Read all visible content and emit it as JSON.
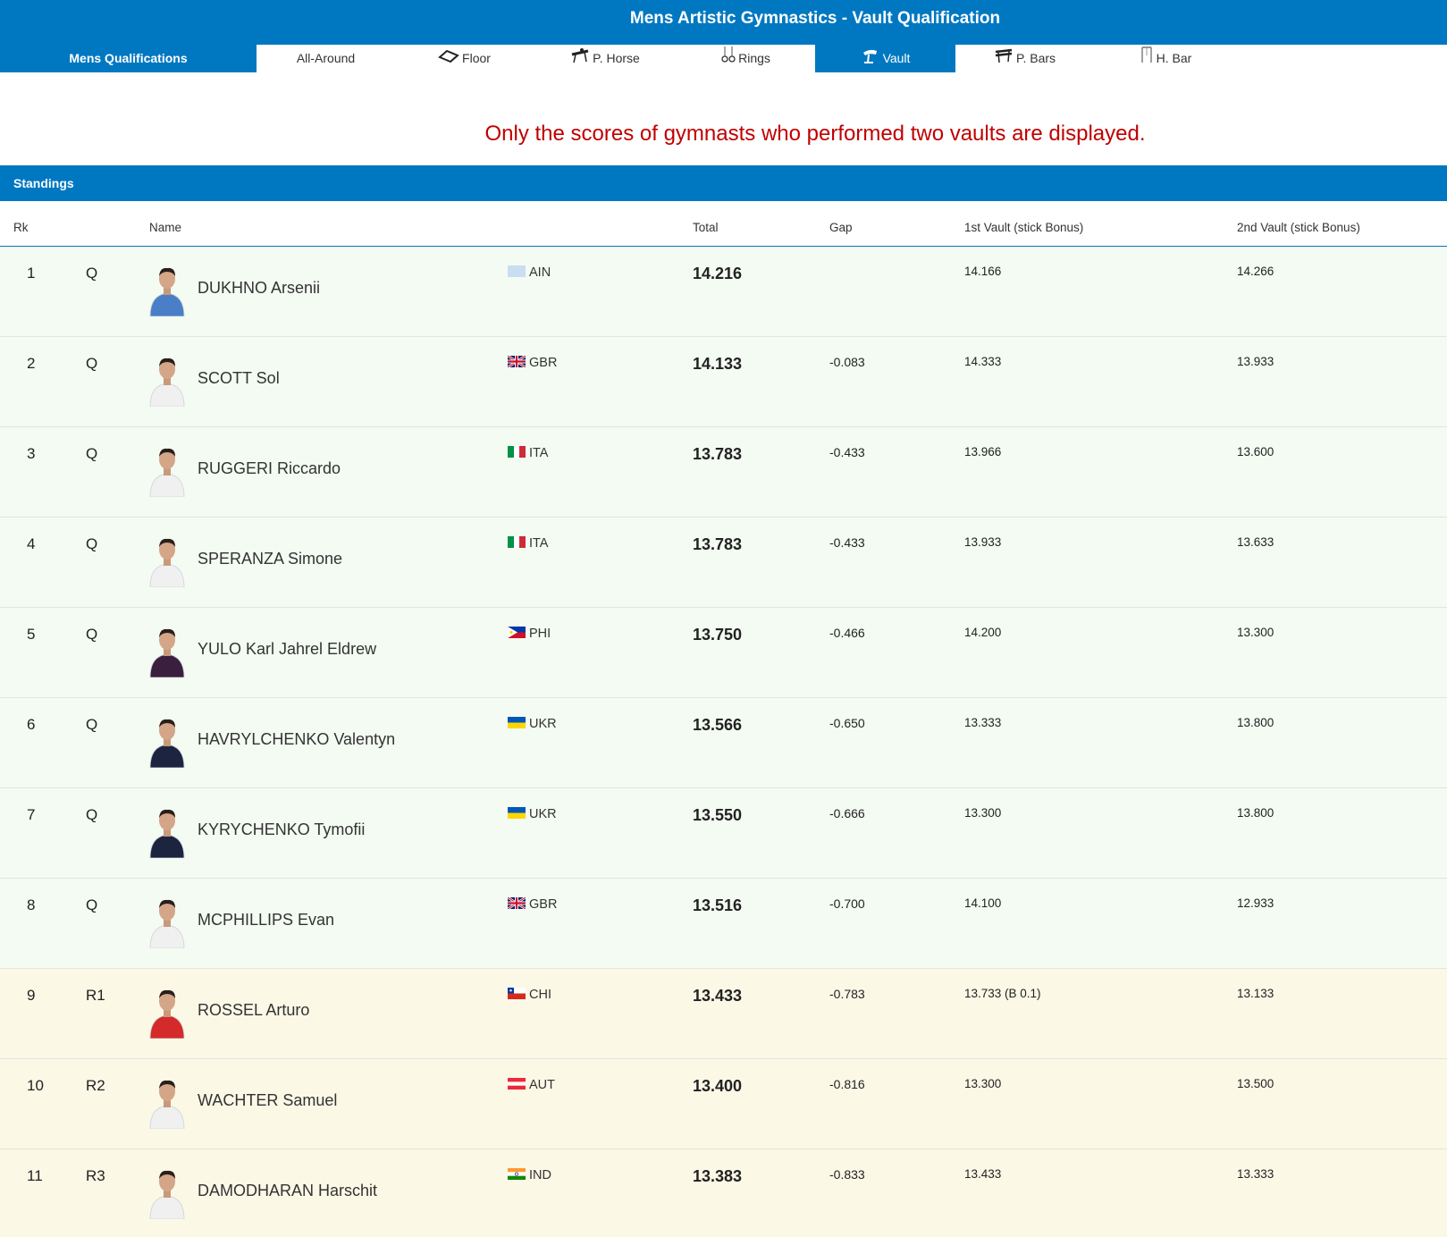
{
  "header": {
    "title": "Mens Artistic Gymnastics - Vault Qualification"
  },
  "tabs": {
    "main": "Mens Qualifications",
    "items": [
      {
        "label": "All-Around",
        "icon": ""
      },
      {
        "label": "Floor",
        "icon": "floor-icon"
      },
      {
        "label": "P. Horse",
        "icon": "pommel-horse-icon"
      },
      {
        "label": "Rings",
        "icon": "rings-icon"
      },
      {
        "label": "Vault",
        "icon": "vault-icon"
      },
      {
        "label": "P. Bars",
        "icon": "parallel-bars-icon"
      },
      {
        "label": "H. Bar",
        "icon": "high-bar-icon"
      }
    ],
    "active": "Vault"
  },
  "notice": "Only the scores of gymnasts who performed two vaults are displayed.",
  "standings": {
    "title": "Standings",
    "columns": {
      "rk": "Rk",
      "name": "Name",
      "total": "Total",
      "gap": "Gap",
      "vault1": "1st Vault (stick Bonus)",
      "vault2": "2nd Vault (stick Bonus)"
    },
    "rows": [
      {
        "rk": "1",
        "q": "Q",
        "name": "DUKHNO Arsenii",
        "noc": "AIN",
        "total": "14.216",
        "gap": "",
        "v1": "14.166",
        "v2": "14.266",
        "status": "q",
        "flag": "ain",
        "kit": "#4a7fc8"
      },
      {
        "rk": "2",
        "q": "Q",
        "name": "SCOTT Sol",
        "noc": "GBR",
        "total": "14.133",
        "gap": "-0.083",
        "v1": "14.333",
        "v2": "13.933",
        "status": "q",
        "flag": "gbr",
        "kit": "#f0f0f0"
      },
      {
        "rk": "3",
        "q": "Q",
        "name": "RUGGERI Riccardo",
        "noc": "ITA",
        "total": "13.783",
        "gap": "-0.433",
        "v1": "13.966",
        "v2": "13.600",
        "status": "q",
        "flag": "ita",
        "kit": "#f0f0f0"
      },
      {
        "rk": "4",
        "q": "Q",
        "name": "SPERANZA Simone",
        "noc": "ITA",
        "total": "13.783",
        "gap": "-0.433",
        "v1": "13.933",
        "v2": "13.633",
        "status": "q",
        "flag": "ita",
        "kit": "#f0f0f0"
      },
      {
        "rk": "5",
        "q": "Q",
        "name": "YULO Karl Jahrel Eldrew",
        "noc": "PHI",
        "total": "13.750",
        "gap": "-0.466",
        "v1": "14.200",
        "v2": "13.300",
        "status": "q",
        "flag": "phi",
        "kit": "#3a1f3f"
      },
      {
        "rk": "6",
        "q": "Q",
        "name": "HAVRYLCHENKO Valentyn",
        "noc": "UKR",
        "total": "13.566",
        "gap": "-0.650",
        "v1": "13.333",
        "v2": "13.800",
        "status": "q",
        "flag": "ukr",
        "kit": "#1d2440"
      },
      {
        "rk": "7",
        "q": "Q",
        "name": "KYRYCHENKO Tymofii",
        "noc": "UKR",
        "total": "13.550",
        "gap": "-0.666",
        "v1": "13.300",
        "v2": "13.800",
        "status": "q",
        "flag": "ukr",
        "kit": "#1d2440"
      },
      {
        "rk": "8",
        "q": "Q",
        "name": "MCPHILLIPS Evan",
        "noc": "GBR",
        "total": "13.516",
        "gap": "-0.700",
        "v1": "14.100",
        "v2": "12.933",
        "status": "q",
        "flag": "gbr",
        "kit": "#f0f0f0"
      },
      {
        "rk": "9",
        "q": "R1",
        "name": "ROSSEL Arturo",
        "noc": "CHI",
        "total": "13.433",
        "gap": "-0.783",
        "v1": "13.733 (B 0.1)",
        "v2": "13.133",
        "status": "r",
        "flag": "chi",
        "kit": "#d42a2a"
      },
      {
        "rk": "10",
        "q": "R2",
        "name": "WACHTER Samuel",
        "noc": "AUT",
        "total": "13.400",
        "gap": "-0.816",
        "v1": "13.300",
        "v2": "13.500",
        "status": "r",
        "flag": "aut",
        "kit": "#f0f0f0"
      },
      {
        "rk": "11",
        "q": "R3",
        "name": "DAMODHARAN Harschit",
        "noc": "IND",
        "total": "13.383",
        "gap": "-0.833",
        "v1": "13.433",
        "v2": "13.333",
        "status": "r",
        "flag": "ind",
        "kit": "#f0f0f0"
      }
    ]
  },
  "colors": {
    "brand_blue": "#0078c1",
    "notice_red": "#c00000",
    "qualified_bg": "#f3fbf2",
    "reserve_bg": "#fbf8e6"
  }
}
